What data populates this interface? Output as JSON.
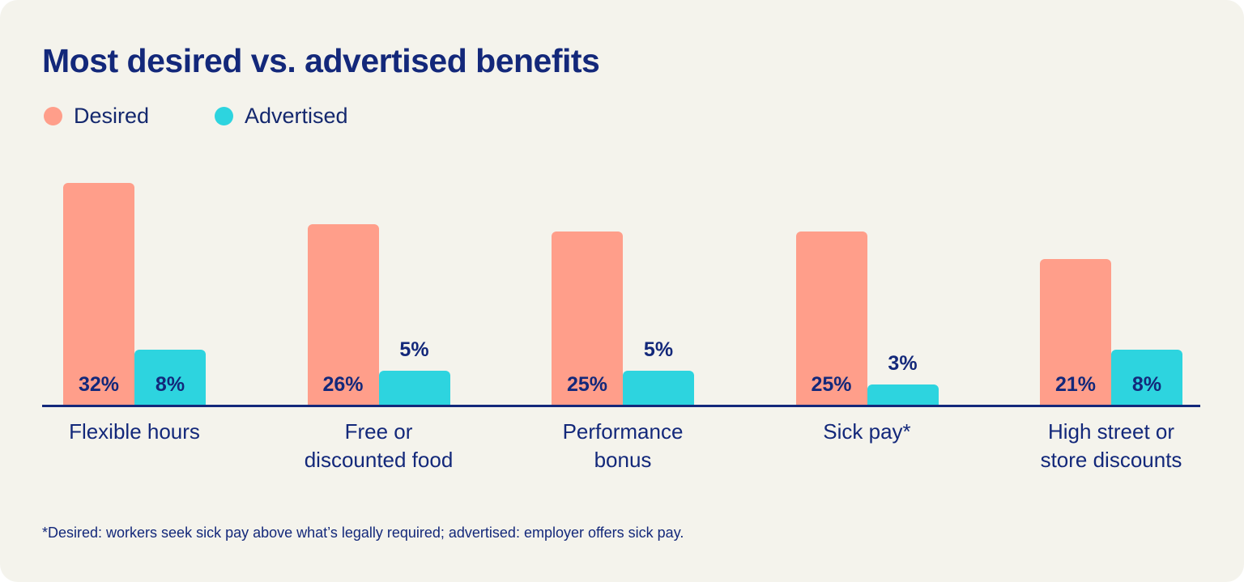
{
  "chart_data": {
    "type": "bar",
    "title": "Most desired vs. advertised benefits",
    "categories": [
      "Flexible hours",
      "Free or\ndiscounted food",
      "Performance\nbonus",
      "Sick pay*",
      "High street or\nstore discounts"
    ],
    "series": [
      {
        "name": "Desired",
        "color": "#ff9e8a",
        "values": [
          32,
          26,
          25,
          25,
          21
        ],
        "labels": [
          "32%",
          "26%",
          "25%",
          "25%",
          "21%"
        ]
      },
      {
        "name": "Advertised",
        "color": "#2dd4df",
        "values": [
          8,
          5,
          5,
          3,
          8
        ],
        "labels": [
          "8%",
          "5%",
          "5%",
          "3%",
          "8%"
        ]
      }
    ],
    "legend_position": "top-left",
    "grid": false,
    "footnote": "*Desired: workers seek sick pay above what’s legally required; advertised: employer offers sick pay."
  }
}
